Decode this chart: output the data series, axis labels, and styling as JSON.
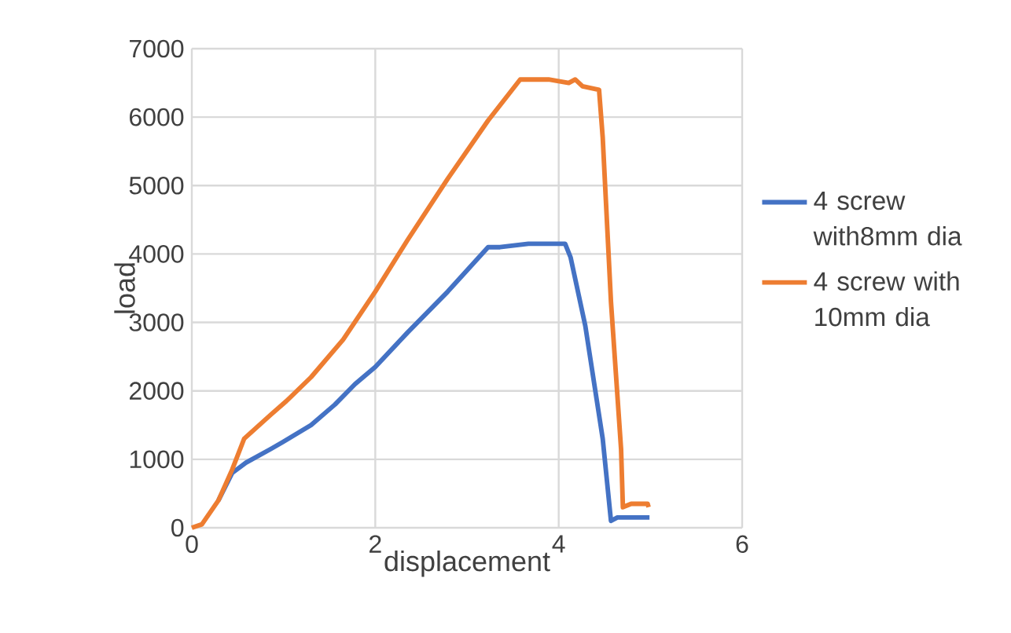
{
  "chart_data": {
    "type": "line",
    "xlabel": "displacement",
    "ylabel": "load",
    "xlim": [
      0,
      6
    ],
    "xticks": [
      0,
      2,
      4,
      6
    ],
    "ylim": [
      0,
      7000
    ],
    "yticks": [
      0,
      1000,
      2000,
      3000,
      4000,
      5000,
      6000,
      7000
    ],
    "grid": true,
    "legend": "right",
    "marker": "none",
    "line_style": "solid",
    "series": [
      {
        "name": "4 screw with8mm dia",
        "color": "#4472c4",
        "x": [
          0.29,
          0.44,
          0.59,
          0.86,
          0.99,
          1.3,
          1.56,
          1.78,
          2.0,
          2.35,
          2.79,
          3.23,
          3.36,
          3.67,
          3.98,
          4.07,
          4.13,
          4.29,
          4.48,
          4.57,
          4.64,
          4.77,
          4.99
        ],
        "values": [
          400,
          800,
          950,
          1150,
          1250,
          1500,
          1800,
          2100,
          2350,
          2850,
          3450,
          4100,
          4100,
          4150,
          4150,
          4150,
          3950,
          2950,
          1300,
          100,
          150,
          150,
          150
        ]
      },
      {
        "name": "4 screw with 10mm dia",
        "color": "#ed7d31",
        "x": [
          0,
          0.11,
          0.29,
          0.44,
          0.57,
          0.86,
          1.03,
          1.3,
          1.65,
          2.0,
          2.35,
          2.79,
          3.23,
          3.58,
          3.67,
          3.89,
          4.11,
          4.18,
          4.26,
          4.44,
          4.48,
          4.57,
          4.68,
          4.7,
          4.79,
          4.97,
          4.98
        ],
        "values": [
          0,
          50,
          400,
          850,
          1300,
          1650,
          1850,
          2200,
          2750,
          3450,
          4200,
          5100,
          5950,
          6550,
          6550,
          6550,
          6500,
          6550,
          6450,
          6400,
          5700,
          3300,
          1150,
          300,
          350,
          350,
          300
        ]
      }
    ]
  }
}
